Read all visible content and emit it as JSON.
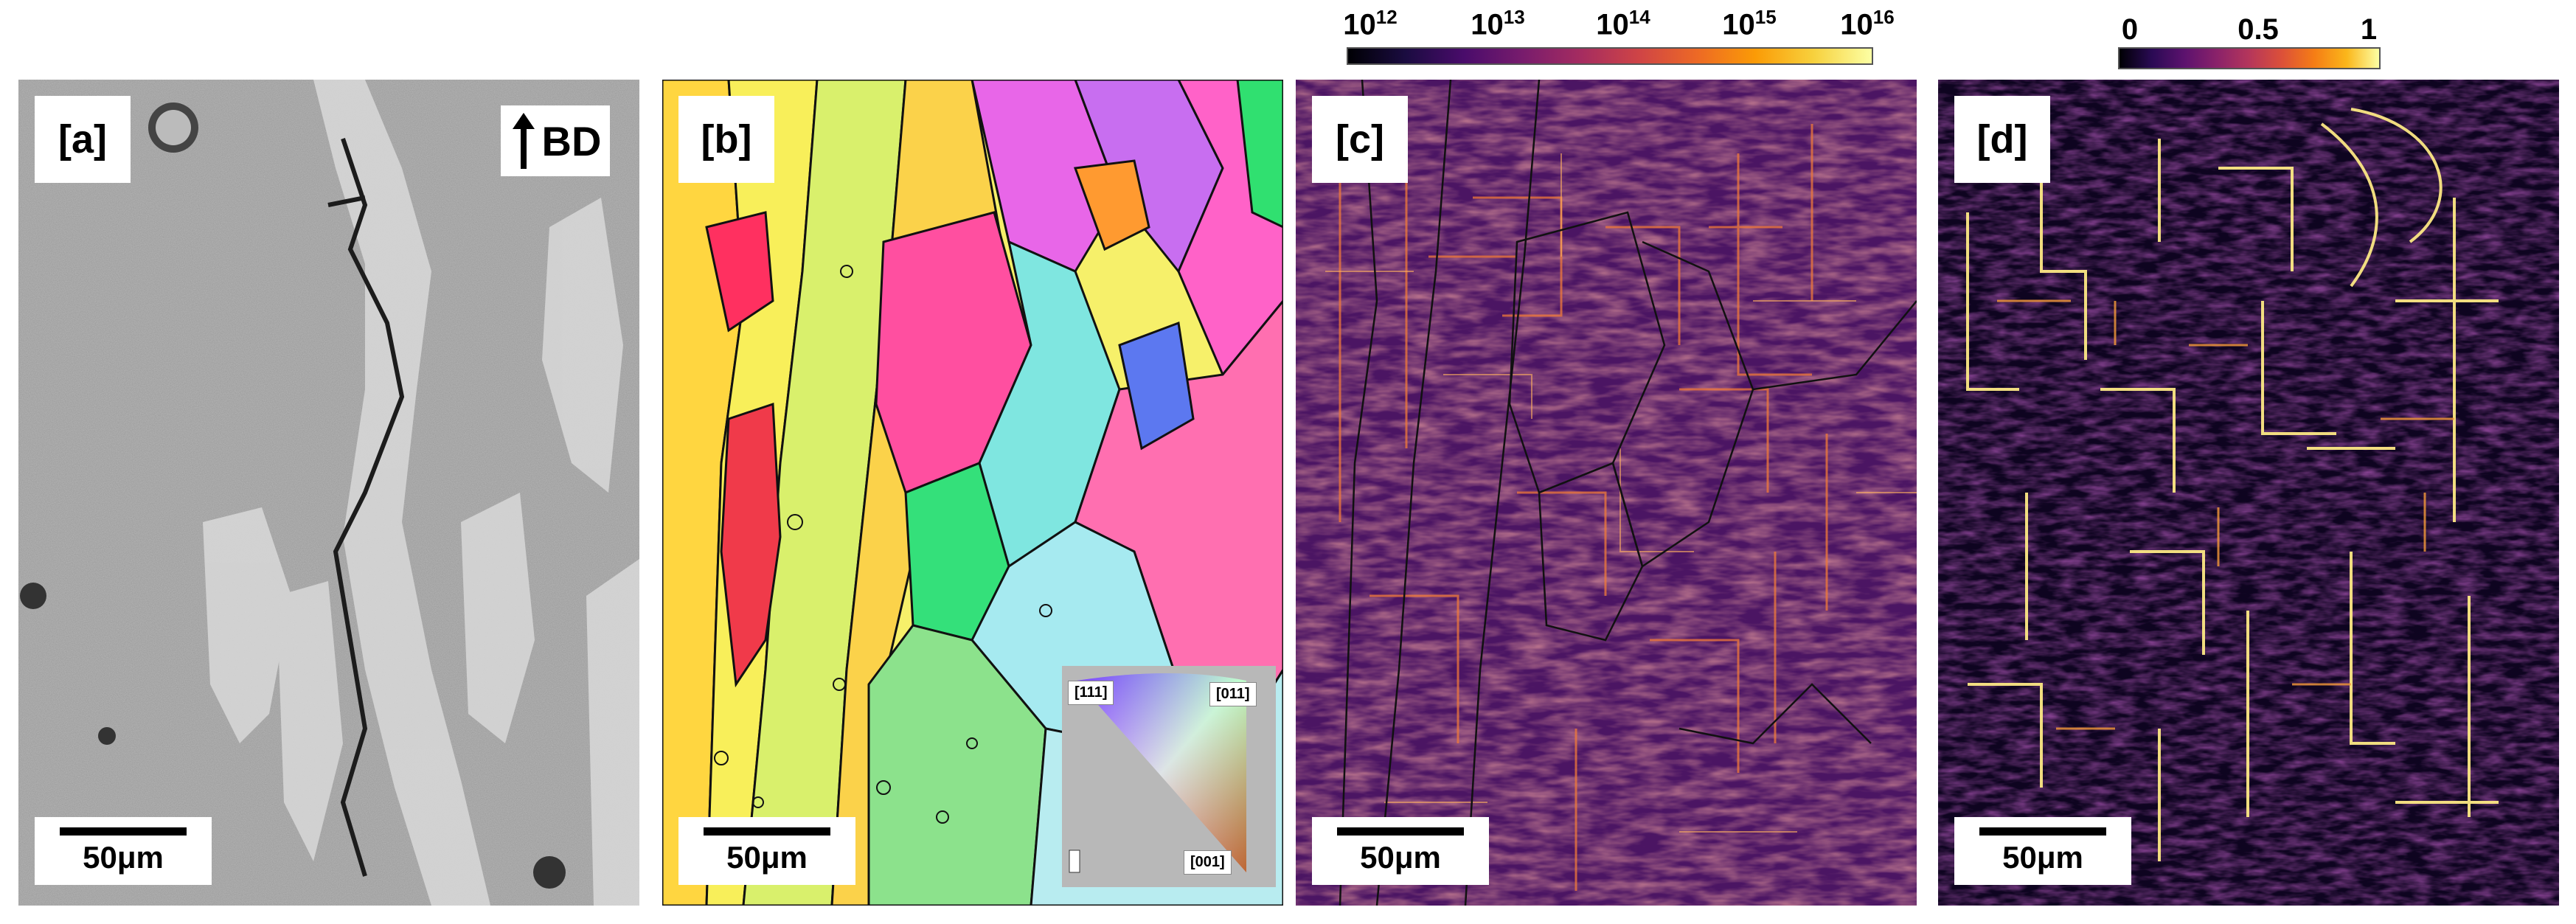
{
  "panels": [
    {
      "label": "[a]",
      "scale": "50μm",
      "direction": "BD"
    },
    {
      "label": "[b]",
      "scale": "50μm",
      "ipf": [
        "[111]",
        "[011]",
        "[001]"
      ]
    },
    {
      "label": "[c]",
      "scale": "50μm"
    },
    {
      "label": "[d]",
      "scale": "50μm"
    }
  ],
  "colorbar_c": {
    "colormap": "inferno",
    "ticks": [
      {
        "base": "10",
        "exp": "12"
      },
      {
        "base": "10",
        "exp": "13"
      },
      {
        "base": "10",
        "exp": "14"
      },
      {
        "base": "10",
        "exp": "15"
      },
      {
        "base": "10",
        "exp": "16"
      }
    ]
  },
  "colorbar_d": {
    "colormap": "inferno",
    "ticks": [
      "0",
      "0.5",
      "1"
    ]
  }
}
